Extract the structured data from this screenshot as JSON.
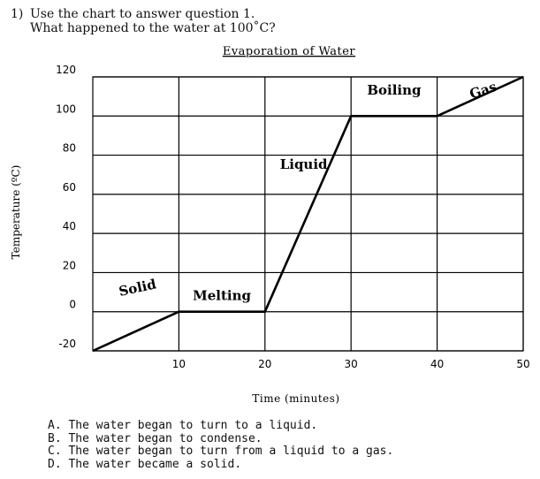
{
  "question": {
    "number": "1)",
    "line1": "Use the chart to answer question 1.",
    "line2": "What happened to the water at 100˚C?"
  },
  "chart_data": {
    "type": "line",
    "title": "Evaporation of Water",
    "xlabel": "Time (minutes)",
    "ylabel": "Temperature (ºC)",
    "xlim": [
      0,
      50
    ],
    "ylim": [
      -20,
      120
    ],
    "x_ticks": [
      10,
      20,
      30,
      40,
      50
    ],
    "y_ticks": [
      -20,
      0,
      20,
      40,
      60,
      80,
      100,
      120
    ],
    "grid": true,
    "series": [
      {
        "x": [
          0,
          10,
          20,
          30,
          40,
          50
        ],
        "y": [
          -20,
          0,
          0,
          100,
          100,
          120
        ]
      }
    ],
    "annotations": [
      {
        "text": "Solid",
        "x": 5.3,
        "y": 10
      },
      {
        "text": "Melting",
        "x": 15,
        "y": 6
      },
      {
        "text": "Liquid",
        "x": 24.5,
        "y": 73
      },
      {
        "text": "Boiling",
        "x": 35,
        "y": 111
      },
      {
        "text": "Gas",
        "x": 45.5,
        "y": 111
      }
    ]
  },
  "answers": [
    "A. The water began to turn to a liquid.",
    "B. The water began to condense.",
    "C. The water began to turn from a liquid to a gas.",
    "D. The water became a solid."
  ]
}
